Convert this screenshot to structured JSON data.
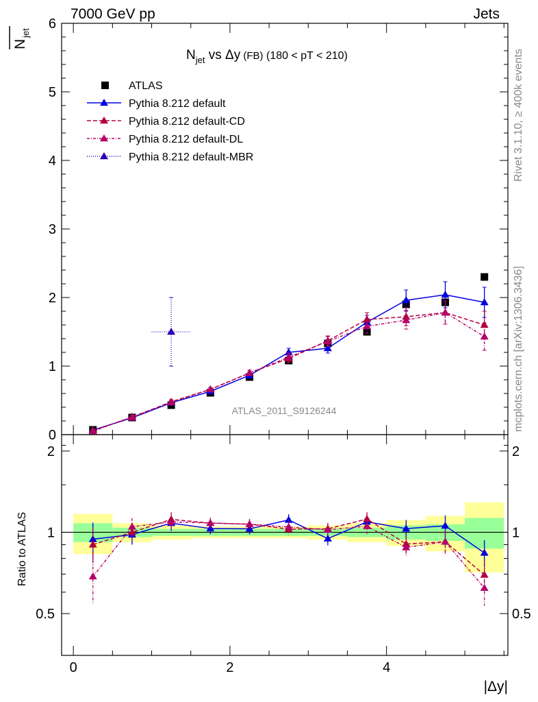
{
  "header": {
    "left": "7000 GeV pp",
    "right": "Jets",
    "side_top": "Rivet 3.1.10, ≥ 400k events",
    "side_bottom": "mcplots.cern.ch [arXiv:1306.3436]"
  },
  "chart_data": {
    "type": "line",
    "title_main": "N",
    "title_sub": "jet",
    "title_rest": " vs Δy",
    "title_fb": " (FB)",
    "title_range": " (180 < pT < 210)",
    "ylabel_main": "N",
    "ylabel_sub": "jet",
    "xlabel": "|Δy|",
    "ratio_ylabel": "Ratio to ATLAS",
    "watermark": "ATLAS_2011_S9126244",
    "xlim": [
      -0.15,
      5.55
    ],
    "ylim": [
      0,
      6
    ],
    "ratio_ylim": [
      0.35,
      2.3
    ],
    "x_ticks": [
      "0",
      "2",
      "4"
    ],
    "y_ticks": [
      "0",
      "1",
      "2",
      "3",
      "4",
      "5",
      "6"
    ],
    "ratio_ticks": [
      "0.5",
      "1",
      "2"
    ],
    "legend_position": "top-left",
    "x": [
      0.25,
      0.75,
      1.25,
      1.75,
      2.25,
      2.75,
      3.25,
      3.75,
      4.25,
      4.75,
      5.25
    ],
    "reference": {
      "name": "ATLAS",
      "color": "#000000",
      "values": [
        0.07,
        0.25,
        0.43,
        0.61,
        0.84,
        1.08,
        1.33,
        1.5,
        1.9,
        1.93,
        2.3
      ],
      "band_inner": [
        0.08,
        0.04,
        0.03,
        0.03,
        0.03,
        0.03,
        0.03,
        0.04,
        0.06,
        0.07,
        0.13
      ],
      "band_outer": [
        0.17,
        0.08,
        0.06,
        0.05,
        0.05,
        0.05,
        0.06,
        0.08,
        0.11,
        0.15,
        0.29
      ]
    },
    "series": [
      {
        "name": "Pythia 8.212 default",
        "color": "#0000dd",
        "dash": "",
        "values": [
          0.066,
          0.245,
          0.465,
          0.63,
          0.865,
          1.2,
          1.26,
          1.64,
          1.96,
          2.04,
          1.93
        ],
        "errors": [
          0.01,
          0.02,
          0.03,
          0.03,
          0.04,
          0.06,
          0.07,
          0.1,
          0.15,
          0.19,
          0.22
        ]
      },
      {
        "name": "Pythia 8.212 default-CD",
        "color": "#b3003b",
        "dash": "6,3",
        "values": [
          0.063,
          0.25,
          0.48,
          0.66,
          0.9,
          1.11,
          1.37,
          1.68,
          1.72,
          1.78,
          1.6
        ],
        "errors": [
          0.01,
          0.02,
          0.03,
          0.03,
          0.04,
          0.06,
          0.07,
          0.1,
          0.13,
          0.17,
          0.2
        ]
      },
      {
        "name": "Pythia 8.212 default-DL",
        "color": "#b3006b",
        "dash": "4,2,1,2",
        "values": [
          0.048,
          0.262,
          0.47,
          0.66,
          0.9,
          1.13,
          1.36,
          1.58,
          1.67,
          1.78,
          1.43
        ],
        "errors": [
          0.01,
          0.02,
          0.03,
          0.03,
          0.04,
          0.06,
          0.07,
          0.1,
          0.13,
          0.17,
          0.2
        ]
      },
      {
        "name": "Pythia 8.212 default-MBR",
        "color": "#2a00b3",
        "dash": "1,2",
        "x": [
          1.25
        ],
        "values": [
          1.5
        ],
        "errors": [
          0.5
        ],
        "xerr": [
          0.25
        ]
      }
    ]
  }
}
